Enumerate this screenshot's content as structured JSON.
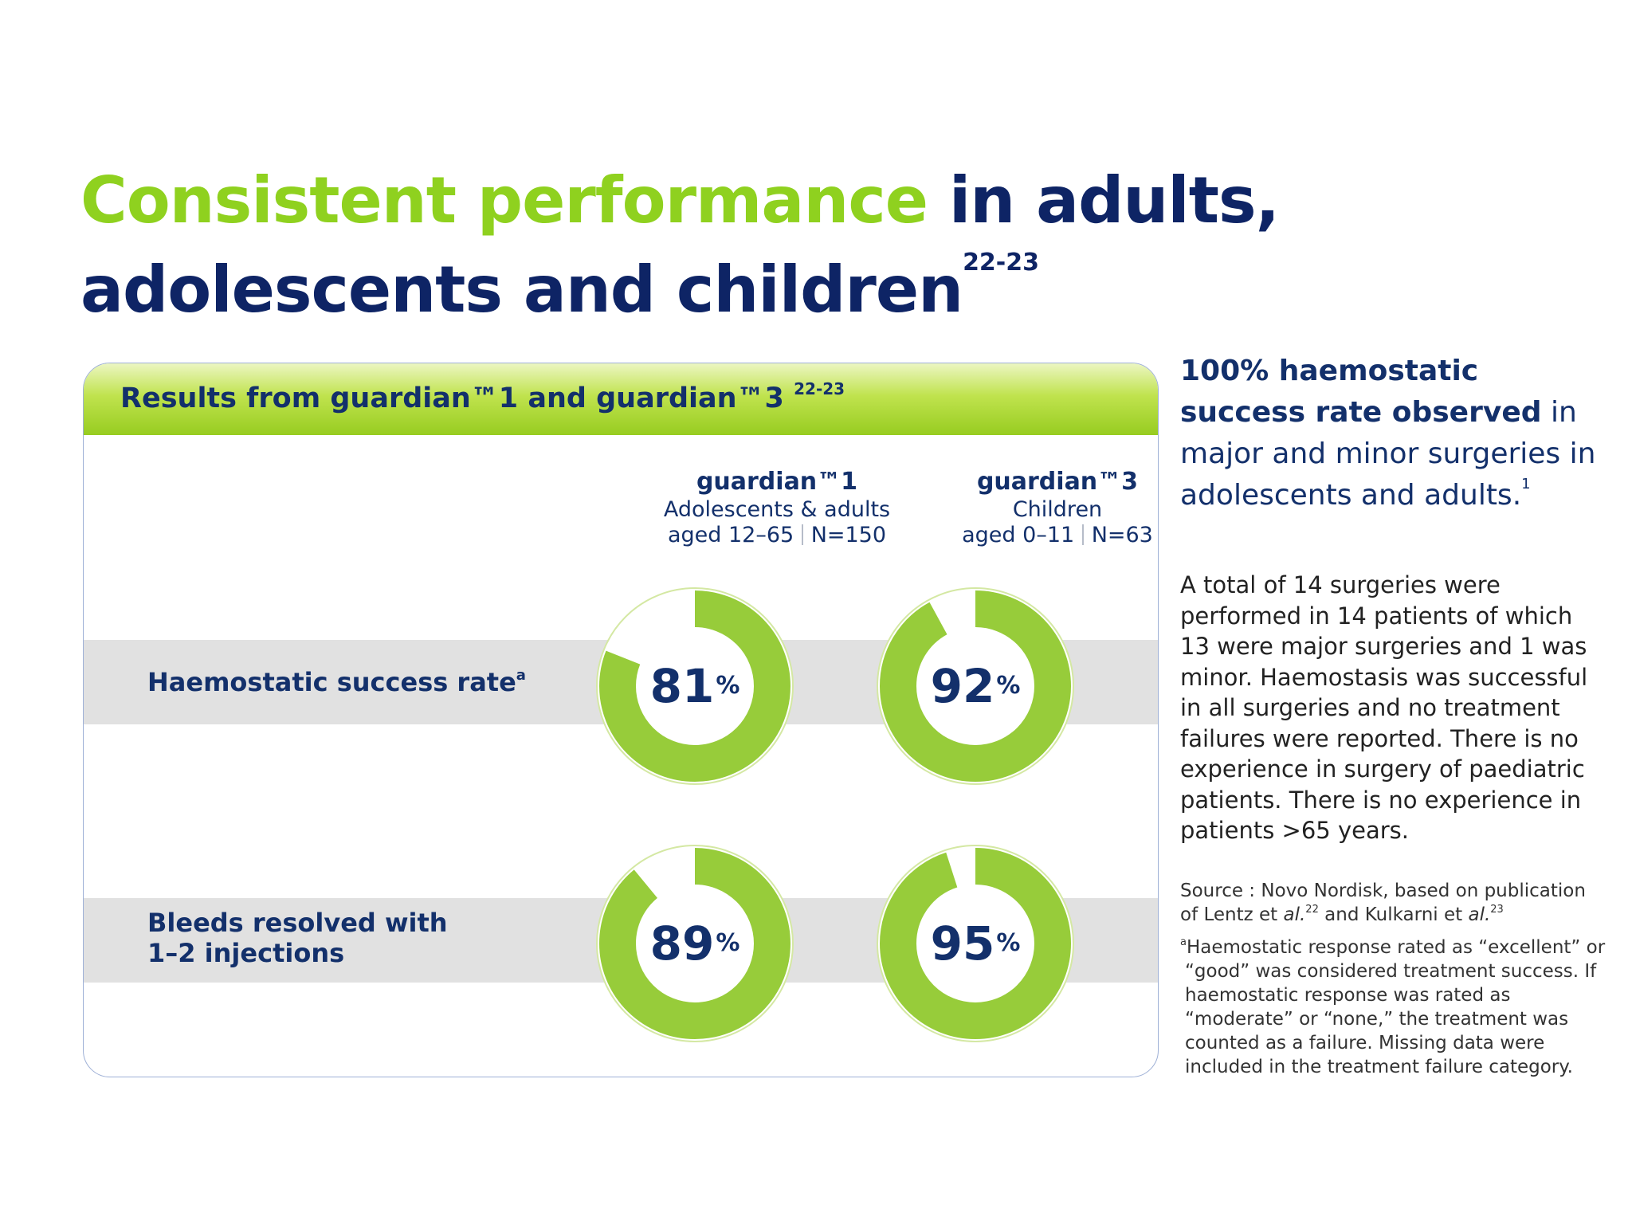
{
  "title": {
    "highlight": "Consistent performance",
    "rest1": "in adults,",
    "rest2": "adolescents and children",
    "ref": "22-23"
  },
  "panel": {
    "header": "Results from guardian™1 and guardian™3",
    "header_ref": "22-23",
    "columns": [
      {
        "name": "guardian™1",
        "population": "Adolescents & adults",
        "age": "aged 12–65",
        "n": "N=150"
      },
      {
        "name": "guardian™3",
        "population": "Children",
        "age": "aged 0–11",
        "n": "N=63"
      }
    ],
    "rows": [
      {
        "label": "Haemostatic success rate",
        "label_ref": "a",
        "values": [
          "81",
          "92"
        ]
      },
      {
        "label": "Bleeds resolved with 1–2 injections",
        "label_ref": "",
        "values": [
          "89",
          "95"
        ]
      }
    ],
    "unit": "%"
  },
  "donut_colors": {
    "fill": "#97cc3a",
    "ring_outline": "#d4e8a3",
    "center": "#ffffff"
  },
  "sidebar": {
    "headline_bold": "100% haemostatic success rate observed",
    "headline_light": "in major and minor surgeries in adolescents and adults.",
    "headline_ref": "1",
    "body": "A total of 14 surgeries were performed in 14 patients of which 13 were major surgeries and 1 was minor. Haemostasis was successful in all surgeries and no treatment failures were reported. There is no experience in surgery of paediatric patients. There is no experience in patients >65 years.",
    "source_prefix": "Source : Novo Nordisk, based on publication of Lentz et",
    "source_al": "al.",
    "source_ref1": "22",
    "source_mid": "and Kulkarni et",
    "source_al2": "al.",
    "source_ref2": "23",
    "footnote_marker": "a",
    "footnote_first": "Haemostatic response rated as “excellent” or",
    "footnote_rest": "“good” was considered treatment success. If haemostatic response was rated as “moderate” or “none,” the treatment was counted as a failure. Missing data were included in the treatment failure category."
  }
}
